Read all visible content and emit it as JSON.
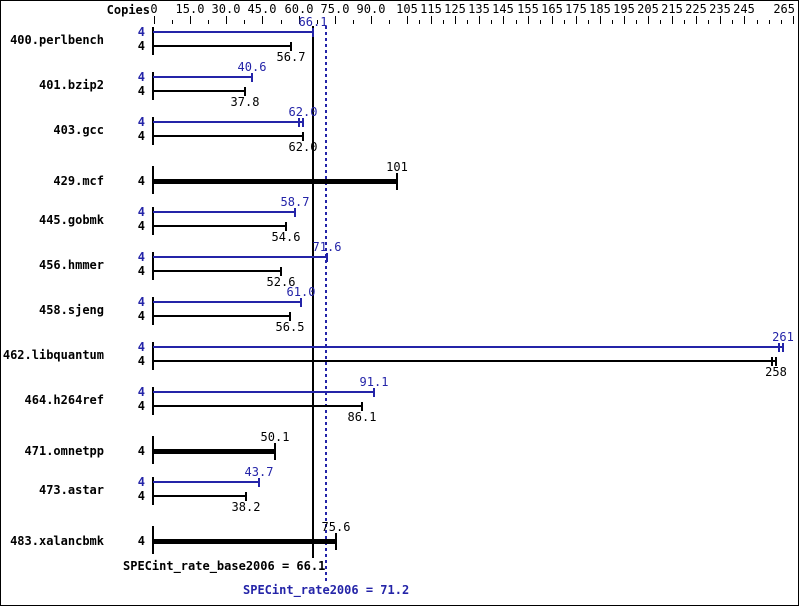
{
  "header": {
    "copies_label": "Copies"
  },
  "colors": {
    "peak": "#2424a8",
    "base": "#000000",
    "background": "#ffffff"
  },
  "chart_data": {
    "type": "bar",
    "orientation": "horizontal",
    "title": "",
    "xlabel": "Copies",
    "xlim": [
      0,
      265
    ],
    "legend": "none",
    "axis_ticks": [
      {
        "value": 0,
        "label": "0"
      },
      {
        "value": 15,
        "label": "15.0"
      },
      {
        "value": 30,
        "label": "30.0"
      },
      {
        "value": 45,
        "label": "45.0"
      },
      {
        "value": 60,
        "label": "60.0"
      },
      {
        "value": 75,
        "label": "75.0"
      },
      {
        "value": 90,
        "label": "90.0"
      },
      {
        "value": 105,
        "label": "105"
      },
      {
        "value": 115,
        "label": "115"
      },
      {
        "value": 125,
        "label": "125"
      },
      {
        "value": 135,
        "label": "135"
      },
      {
        "value": 145,
        "label": "145"
      },
      {
        "value": 155,
        "label": "155"
      },
      {
        "value": 165,
        "label": "165"
      },
      {
        "value": 175,
        "label": "175"
      },
      {
        "value": 185,
        "label": "185"
      },
      {
        "value": 195,
        "label": "195"
      },
      {
        "value": 205,
        "label": "205"
      },
      {
        "value": 215,
        "label": "215"
      },
      {
        "value": 225,
        "label": "225"
      },
      {
        "value": 235,
        "label": "235"
      },
      {
        "value": 245,
        "label": "245"
      },
      {
        "value": 265,
        "label": "265"
      }
    ],
    "minor_ticks": [
      7.5,
      22.5,
      37.5,
      52.5,
      67.5,
      82.5,
      97.5,
      110,
      120,
      130,
      140,
      150,
      160,
      170,
      180,
      190,
      200,
      210,
      220,
      230,
      240,
      250,
      255,
      260
    ],
    "benchmarks": [
      {
        "name": "400.perlbench",
        "copies": "4",
        "peak": {
          "value": 66.1,
          "label": "66.1"
        },
        "base": {
          "value": 56.7,
          "label": "56.7"
        }
      },
      {
        "name": "401.bzip2",
        "copies": "4",
        "peak": {
          "value": 40.6,
          "label": "40.6"
        },
        "base": {
          "value": 37.8,
          "label": "37.8"
        }
      },
      {
        "name": "403.gcc",
        "copies": "4",
        "peak": {
          "value": 62.0,
          "label": "62.0",
          "marker": "double"
        },
        "base": {
          "value": 62.0,
          "label": "62.0"
        }
      },
      {
        "name": "429.mcf",
        "copies": "4",
        "single": {
          "value": 101,
          "label": "101"
        }
      },
      {
        "name": "445.gobmk",
        "copies": "4",
        "peak": {
          "value": 58.7,
          "label": "58.7"
        },
        "base": {
          "value": 54.6,
          "label": "54.6"
        }
      },
      {
        "name": "456.hmmer",
        "copies": "4",
        "peak": {
          "value": 71.6,
          "label": "71.6"
        },
        "base": {
          "value": 52.6,
          "label": "52.6"
        }
      },
      {
        "name": "458.sjeng",
        "copies": "4",
        "peak": {
          "value": 61.0,
          "label": "61.0"
        },
        "base": {
          "value": 56.5,
          "label": "56.5"
        }
      },
      {
        "name": "462.libquantum",
        "copies": "4",
        "peak": {
          "value": 261,
          "label": "261",
          "marker": "double"
        },
        "base": {
          "value": 258,
          "label": "258",
          "marker": "double"
        }
      },
      {
        "name": "464.h264ref",
        "copies": "4",
        "peak": {
          "value": 91.1,
          "label": "91.1"
        },
        "base": {
          "value": 86.1,
          "label": "86.1"
        }
      },
      {
        "name": "471.omnetpp",
        "copies": "4",
        "single": {
          "value": 50.1,
          "label": "50.1"
        }
      },
      {
        "name": "473.astar",
        "copies": "4",
        "peak": {
          "value": 43.7,
          "label": "43.7"
        },
        "base": {
          "value": 38.2,
          "label": "38.2"
        }
      },
      {
        "name": "483.xalancbmk",
        "copies": "4",
        "single": {
          "value": 75.6,
          "label": "75.6"
        }
      }
    ],
    "reference_lines": [
      {
        "value": 66.1,
        "style": "solid",
        "color_key": "base"
      },
      {
        "value": 71.2,
        "style": "dotted",
        "color_key": "peak"
      }
    ],
    "summary": {
      "base_text": "SPECint_rate_base2006 = 66.1",
      "base_value": 66.1,
      "peak_text": "SPECint_rate2006 = 71.2",
      "peak_value": 71.2
    }
  }
}
